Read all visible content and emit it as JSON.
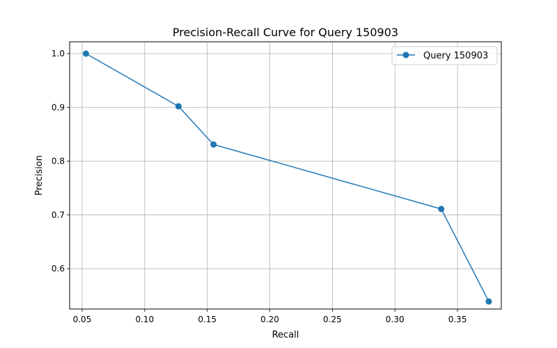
{
  "chart_data": {
    "type": "line",
    "title": "Precision-Recall Curve for Query 150903",
    "xlabel": "Recall",
    "ylabel": "Precision",
    "xlim": [
      0.04,
      0.385
    ],
    "ylim": [
      0.525,
      1.022
    ],
    "xticks": [
      0.05,
      0.1,
      0.15,
      0.2,
      0.25,
      0.3,
      0.35
    ],
    "xtick_labels": [
      "0.05",
      "0.10",
      "0.15",
      "0.20",
      "0.25",
      "0.30",
      "0.35"
    ],
    "yticks": [
      0.6,
      0.7,
      0.8,
      0.9,
      1.0
    ],
    "ytick_labels": [
      "0.6",
      "0.7",
      "0.8",
      "0.9",
      "1.0"
    ],
    "grid": true,
    "legend_position": "top-right",
    "series": [
      {
        "name": "Query 150903",
        "color": "#1f77b4",
        "marker": "circle",
        "x": [
          0.053,
          0.127,
          0.155,
          0.337,
          0.375
        ],
        "y": [
          1.0,
          0.902,
          0.831,
          0.711,
          0.539
        ]
      }
    ]
  }
}
